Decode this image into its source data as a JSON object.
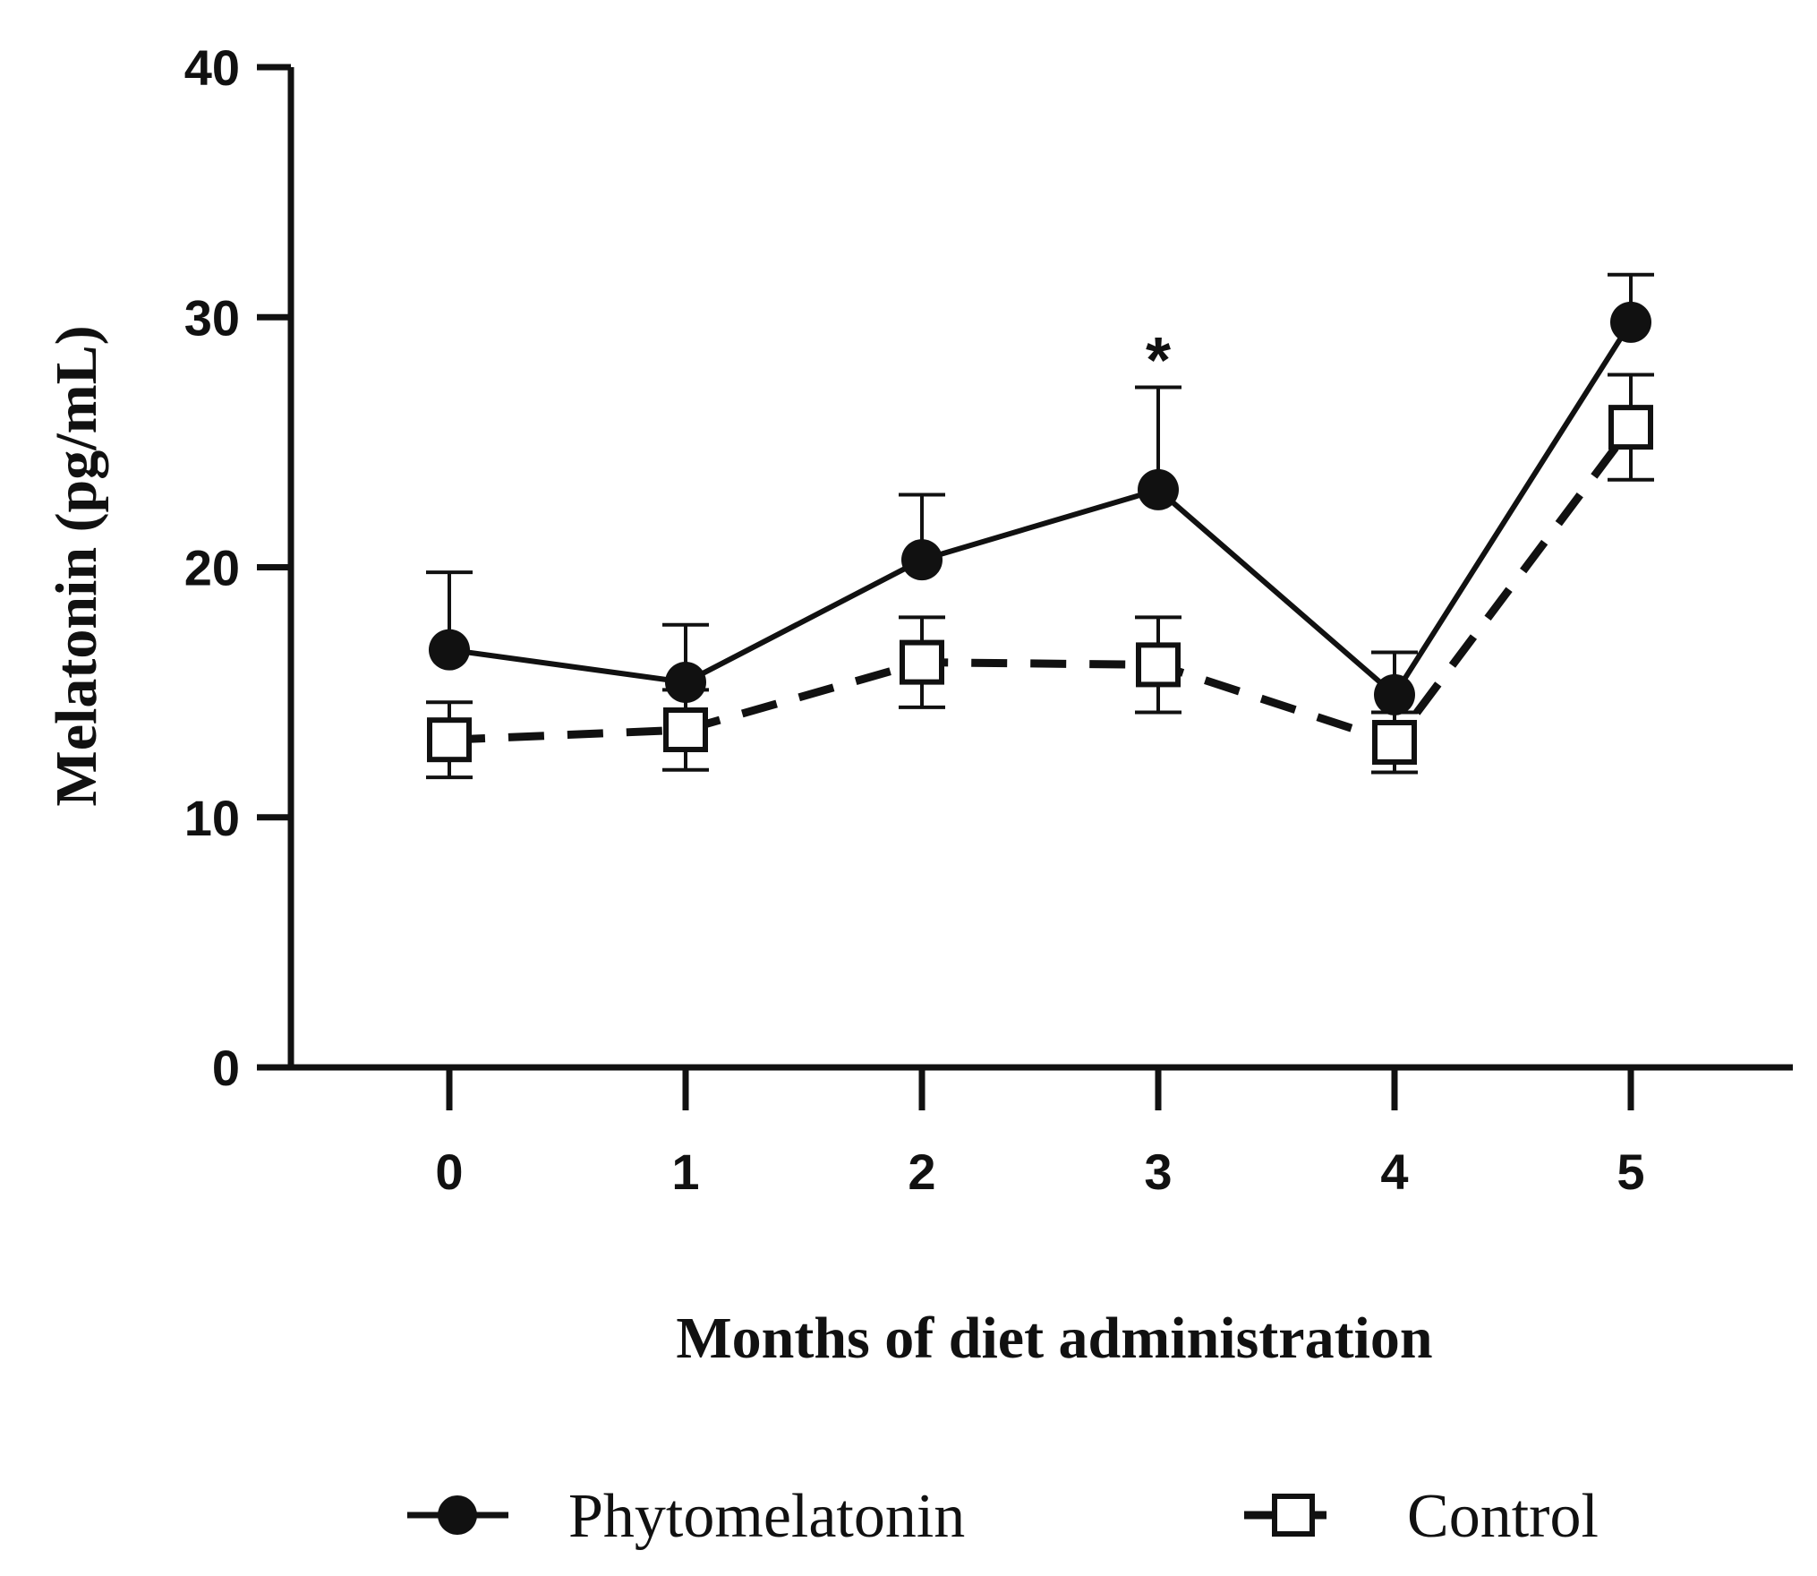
{
  "chart_data": {
    "type": "line",
    "title": "",
    "xlabel": "Months of diet administration",
    "ylabel": "Melatonin (pg/mL)",
    "x": [
      0,
      1,
      2,
      3,
      4,
      5
    ],
    "xticks": [
      "0",
      "1",
      "2",
      "3",
      "4",
      "5"
    ],
    "ylim": [
      0,
      40
    ],
    "yticks": [
      "0",
      "10",
      "20",
      "30",
      "40"
    ],
    "grid": false,
    "legend_position": "bottom-center",
    "series": [
      {
        "name": "Phytomelatonin",
        "line_style": "solid",
        "marker": "filled-circle",
        "color": "#111111",
        "values": [
          16.7,
          15.4,
          20.3,
          23.1,
          14.9,
          29.8
        ],
        "error": [
          3.1,
          2.3,
          2.6,
          4.1,
          1.7,
          1.9
        ]
      },
      {
        "name": "Control",
        "line_style": "dashed",
        "marker": "open-square",
        "color": "#111111",
        "values": [
          13.1,
          13.5,
          16.2,
          16.1,
          13.0,
          25.6
        ],
        "error": [
          1.5,
          1.6,
          1.8,
          1.9,
          1.2,
          2.1
        ]
      }
    ],
    "annotations": [
      {
        "text": "*",
        "x": 3,
        "y": 29
      }
    ]
  }
}
